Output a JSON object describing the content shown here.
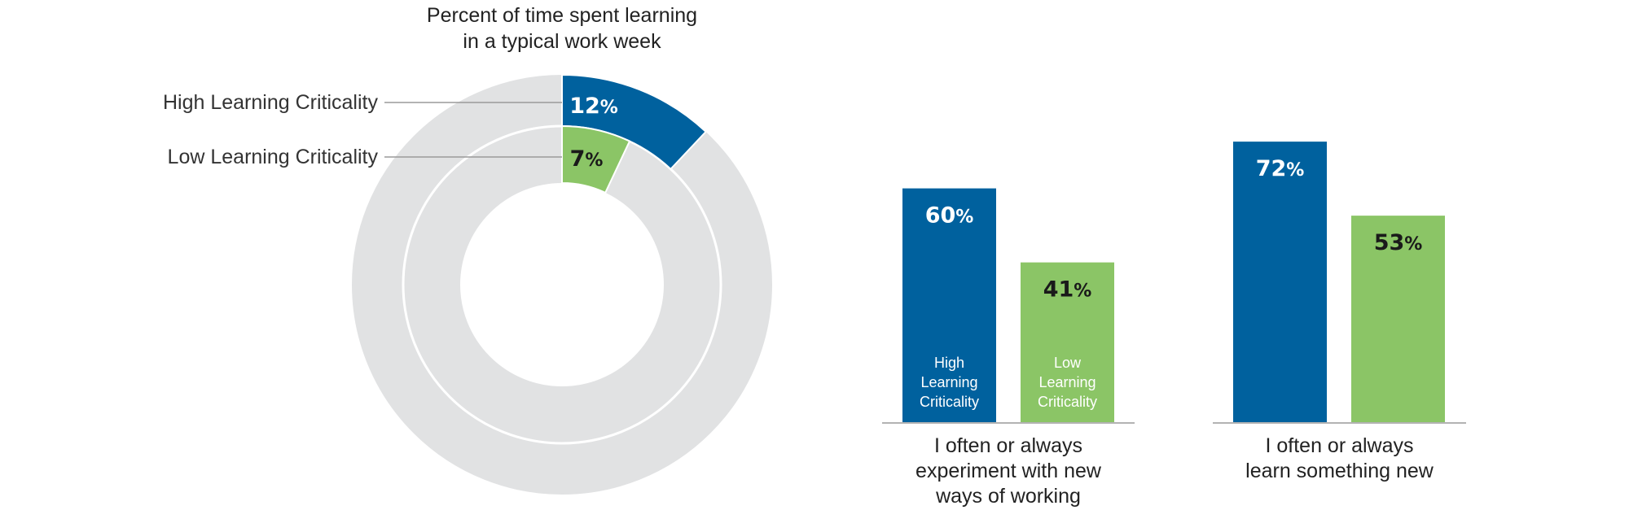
{
  "chart_data": [
    {
      "type": "donut",
      "title_lines": [
        "Percent of time spent learning",
        "in a typical work week"
      ],
      "rings": [
        {
          "name": "High Learning Criticality",
          "value": 12,
          "label": "12",
          "unit": "%",
          "color": "#00619e"
        },
        {
          "name": "Low Learning Criticality",
          "value": 7,
          "label": "7",
          "unit": "%",
          "color": "#8bc566"
        }
      ],
      "remainder_color": "#e1e2e3",
      "max": 100
    },
    {
      "type": "bar",
      "series": [
        {
          "name_lines": [
            "High",
            "Learning",
            "Criticality"
          ],
          "color": "#00619e",
          "label_color": "#ffffff"
        },
        {
          "name_lines": [
            "Low",
            "Learning",
            "Criticality"
          ],
          "color": "#8bc566",
          "label_color": "#1a1a1a"
        }
      ],
      "groups": [
        {
          "category_lines": [
            "I often or always",
            "experiment with new",
            "ways of working"
          ],
          "values": [
            60,
            41
          ],
          "labels": [
            "60",
            "41"
          ]
        },
        {
          "category_lines": [
            "I often or always",
            "learn something new"
          ],
          "values": [
            72,
            53
          ],
          "labels": [
            "72",
            "53"
          ]
        }
      ],
      "unit": "%",
      "ylim": [
        0,
        100
      ]
    }
  ]
}
